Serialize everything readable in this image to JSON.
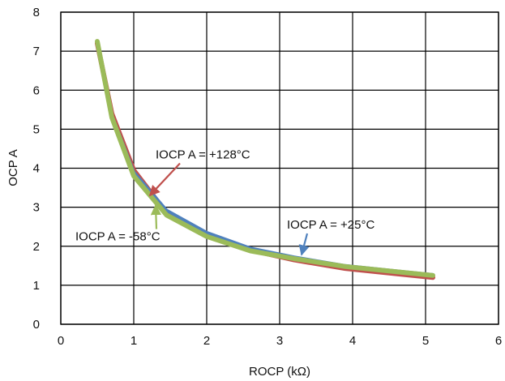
{
  "chart_data": {
    "type": "line",
    "title": "",
    "xlabel": "ROCP (kΩ)",
    "ylabel": "OCP A",
    "xlim": [
      0,
      6
    ],
    "ylim": [
      0,
      8
    ],
    "xticks": [
      "0",
      "1",
      "2",
      "3",
      "4",
      "5",
      "6"
    ],
    "yticks": [
      "0",
      "1",
      "2",
      "3",
      "4",
      "5",
      "6",
      "7",
      "8"
    ],
    "grid": true,
    "series": [
      {
        "name": "IOCP A = +128°C",
        "color": "#c0504d",
        "x": [
          0.5,
          0.7,
          1.0,
          1.45,
          2.0,
          2.6,
          3.2,
          3.9,
          5.1
        ],
        "y": [
          7.2,
          5.4,
          3.95,
          2.85,
          2.3,
          1.9,
          1.65,
          1.43,
          1.2
        ]
      },
      {
        "name": "IOCP A = +25°C",
        "color": "#4f81bd",
        "x": [
          0.5,
          0.7,
          1.0,
          1.45,
          2.0,
          2.6,
          3.2,
          3.9,
          5.1
        ],
        "y": [
          7.2,
          5.35,
          3.9,
          2.92,
          2.35,
          1.95,
          1.72,
          1.5,
          1.27
        ]
      },
      {
        "name": "IOCP A = -58°C",
        "color": "#9bbb59",
        "x": [
          0.5,
          0.7,
          1.0,
          1.45,
          2.0,
          2.6,
          3.2,
          3.9,
          5.1
        ],
        "y": [
          7.25,
          5.3,
          3.8,
          2.8,
          2.25,
          1.88,
          1.68,
          1.48,
          1.25
        ]
      }
    ],
    "annotations": [
      {
        "text": "IOCP A = +128°C",
        "series": 0,
        "point_x": 1.22,
        "point_y": 3.3,
        "label_x": 1.3,
        "label_y": 4.25
      },
      {
        "text": "IOCP A = +25°C",
        "series": 1,
        "point_x": 3.3,
        "point_y": 1.78,
        "label_x": 3.1,
        "label_y": 2.45
      },
      {
        "text": "IOCP A = -58°C",
        "series": 2,
        "point_x": 1.3,
        "point_y": 3.05,
        "label_x": 0.2,
        "label_y": 2.15
      }
    ]
  }
}
